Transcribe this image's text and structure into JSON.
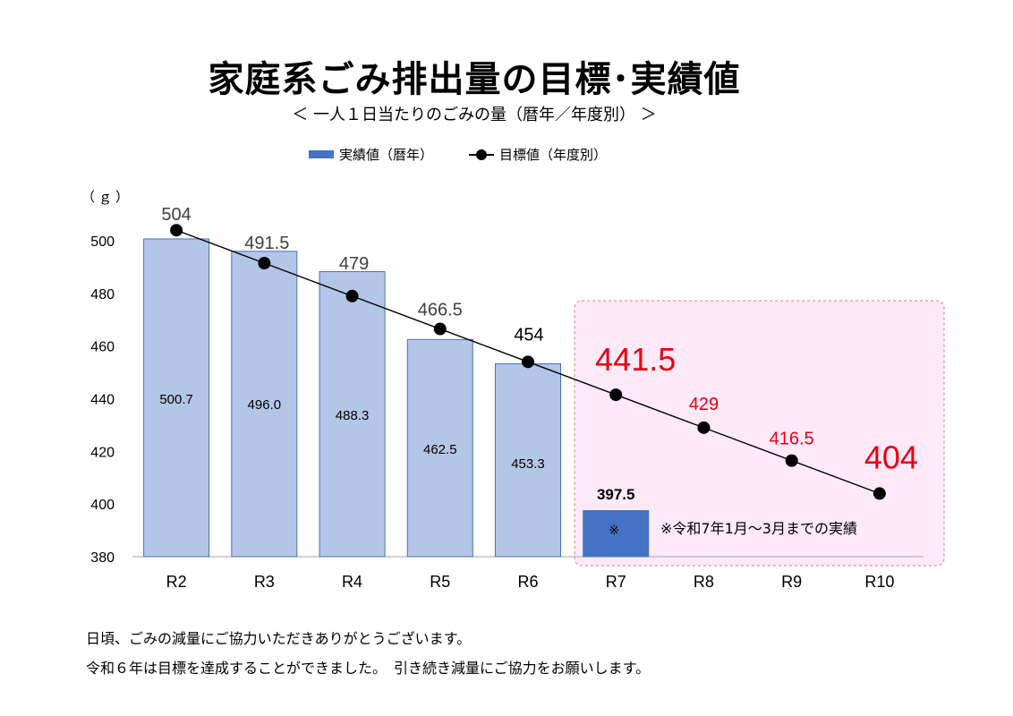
{
  "title": "家庭系ごみ排出量の目標･実績値",
  "subtitle": "＜ 一人１日当たりのごみの量（暦年／年度別） ＞",
  "unit_label": "（ｇ）",
  "legend": {
    "actual": "実績値（暦年）",
    "target": "目標値（年度別）"
  },
  "note": "※令和7年1月～3月までの実績",
  "note_mark": "※",
  "footer": {
    "line1": "日頃、ごみの減量にご協力いただきありがとうございます。",
    "line2": "令和６年は目標を達成することができました。　引き続き減量にご協力をお願いします。"
  },
  "colors": {
    "actual_past": "#b4c6e7",
    "actual_past_border": "#4472c4",
    "actual_current": "#4472c4",
    "target_line": "#000000",
    "target_future_label": "#e60012",
    "highlight_fill": "#fde9f7",
    "highlight_border": "#e07a8a"
  },
  "chart_data": {
    "type": "bar",
    "categories": [
      "R2",
      "R3",
      "R4",
      "R5",
      "R6",
      "R7",
      "R8",
      "R9",
      "R10"
    ],
    "ylim": [
      380,
      500
    ],
    "yticks": [
      380,
      400,
      420,
      440,
      460,
      480,
      500
    ],
    "grid": false,
    "legend_position": "top",
    "series": [
      {
        "name": "実績値（暦年）",
        "type": "bar",
        "values": [
          500.7,
          496.0,
          488.3,
          462.5,
          453.3,
          397.5,
          null,
          null,
          null
        ],
        "labels": [
          "500.7",
          "496.0",
          "488.3",
          "462.5",
          "453.3",
          "397.5",
          "",
          "",
          ""
        ]
      },
      {
        "name": "目標値（年度別）",
        "type": "line",
        "values": [
          504,
          491.5,
          479,
          466.5,
          454,
          441.5,
          429,
          416.5,
          404
        ],
        "labels": [
          "504",
          "491.5",
          "479",
          "466.5",
          "454",
          "441.5",
          "429",
          "416.5",
          "404"
        ]
      }
    ]
  }
}
